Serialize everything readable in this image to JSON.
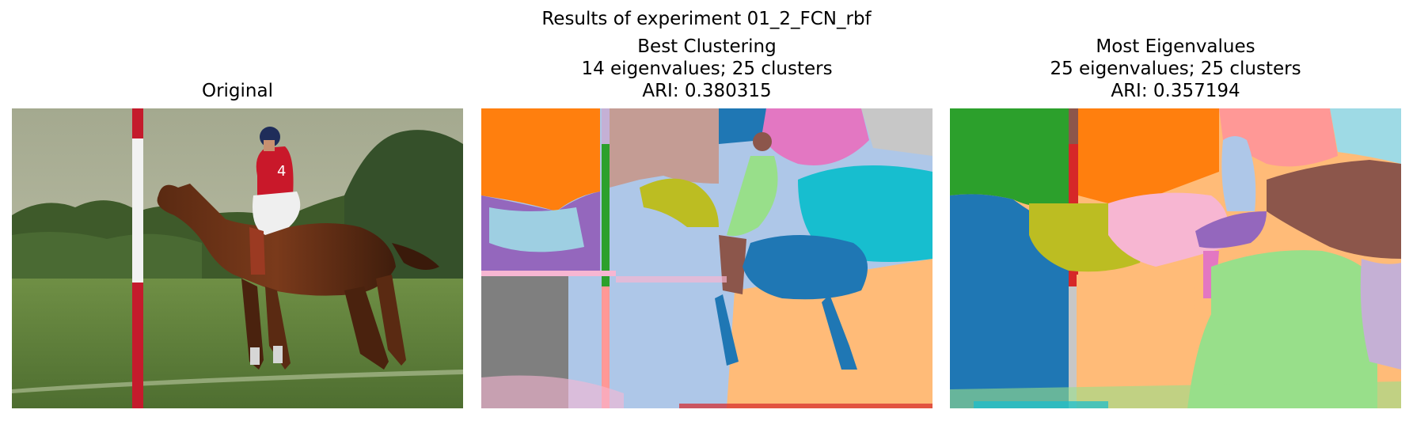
{
  "suptitle": "Results of experiment 01_2_FCN_rbf",
  "panels": [
    {
      "title_lines": [
        "Original"
      ],
      "image": "photo of a polo player in a red jersey riding a brown horse past a red and white pole on a grass field"
    },
    {
      "title_lines": [
        "Best Clustering",
        "14 eigenvalues; 25 clusters",
        "ARI: 0.380315"
      ],
      "image": "segmentation map with 14 eigenvalues and 25 clusters"
    },
    {
      "title_lines": [
        "Most Eigenvalues",
        "25 eigenvalues; 25 clusters",
        "ARI: 0.357194"
      ],
      "image": "segmentation map with 25 eigenvalues and 25 clusters"
    }
  ]
}
